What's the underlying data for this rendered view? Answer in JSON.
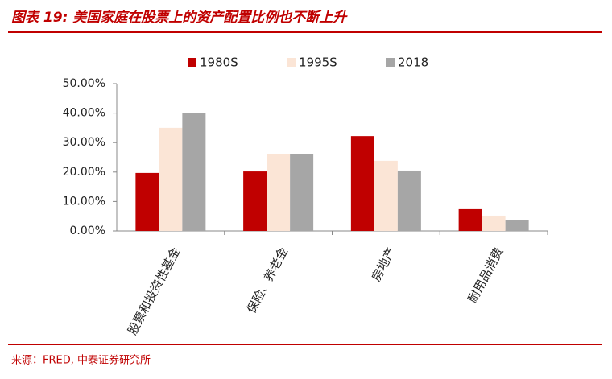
{
  "chart_data": {
    "type": "bar",
    "title": "图表 19: 美国家庭在股票上的资产配置比例也不断上升",
    "source": "来源：FRED, 中泰证券研究所",
    "categories": [
      "股票和投资性基金",
      "保险、养老金",
      "房地产",
      "耐用品消费"
    ],
    "series": [
      {
        "name": "1980S",
        "color": "#c00000",
        "values": [
          19.7,
          20.2,
          32.2,
          7.4
        ]
      },
      {
        "name": "1995S",
        "color": "#fbe5d6",
        "values": [
          35.0,
          26.0,
          23.8,
          5.2
        ]
      },
      {
        "name": "2018",
        "color": "#a6a6a6",
        "values": [
          39.9,
          26.0,
          20.5,
          3.6
        ]
      }
    ],
    "ylim": [
      0,
      50
    ],
    "yticks": [
      {
        "value": 0,
        "label": "0.00%"
      },
      {
        "value": 10,
        "label": "10.00%"
      },
      {
        "value": 20,
        "label": "20.00%"
      },
      {
        "value": 30,
        "label": "30.00%"
      },
      {
        "value": 40,
        "label": "40.00%"
      },
      {
        "value": 50,
        "label": "50.00%"
      }
    ],
    "grid": false
  }
}
